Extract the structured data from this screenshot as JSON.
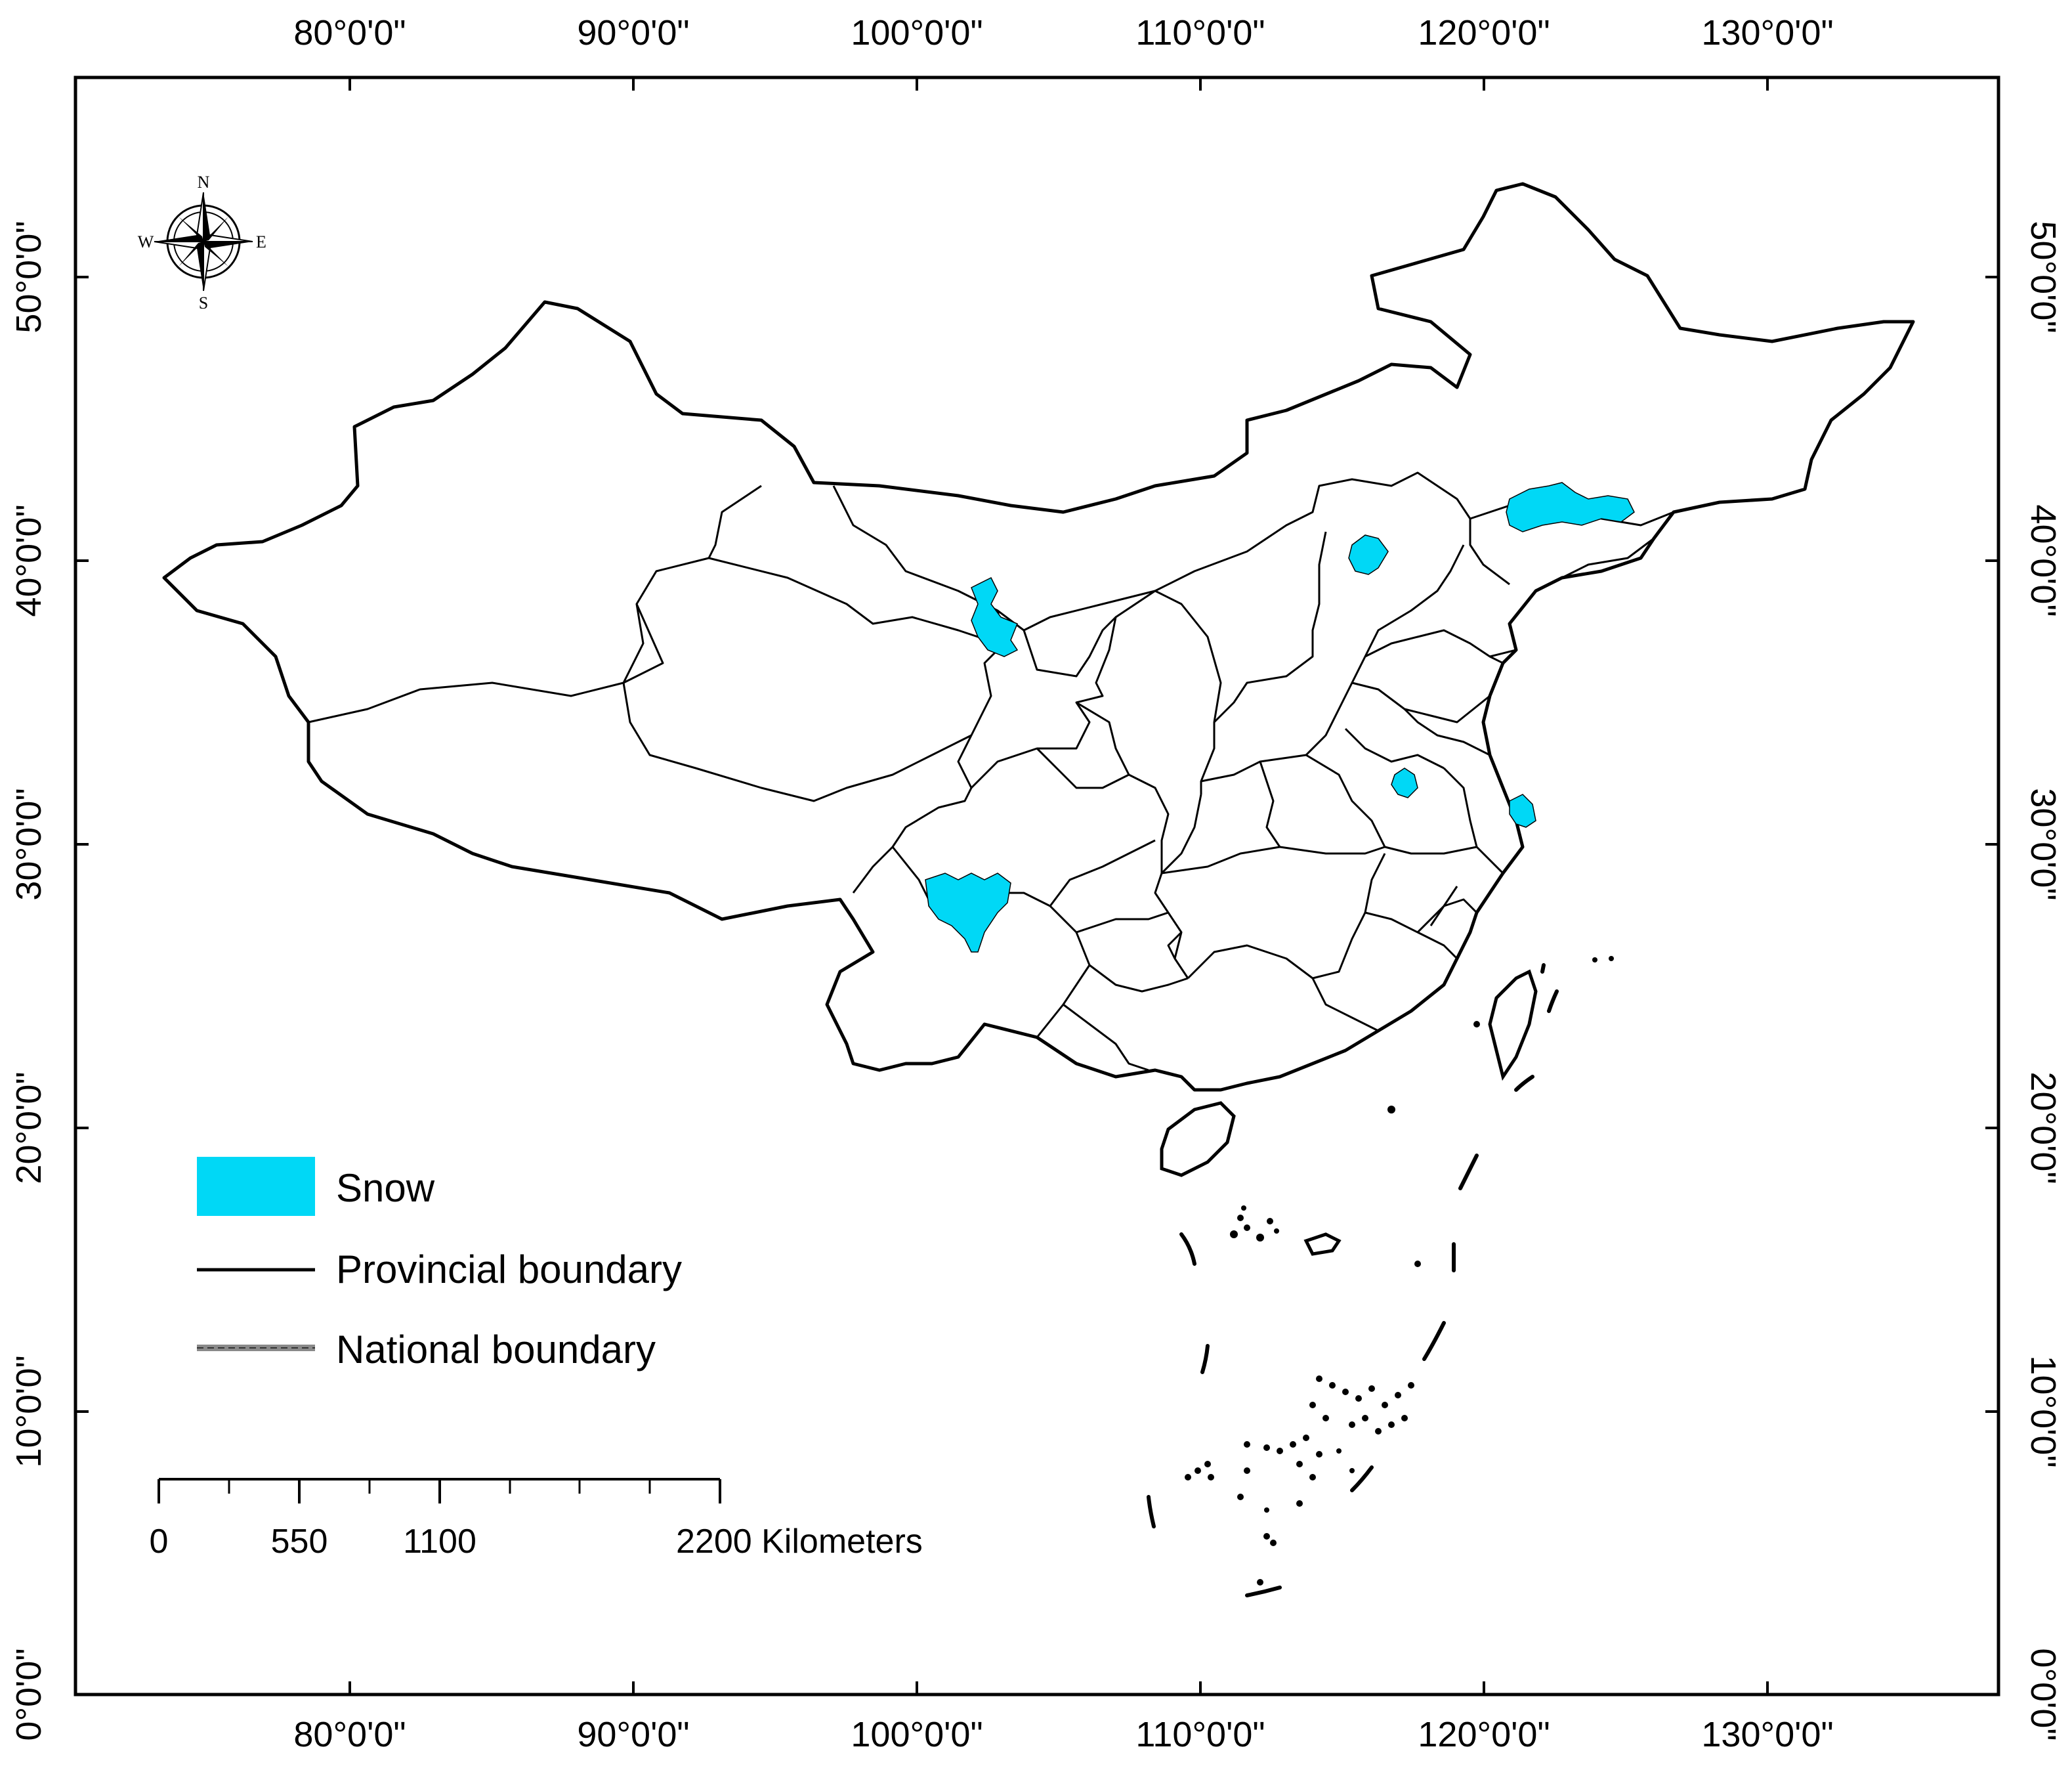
{
  "colors": {
    "snow": "#00d8f6",
    "provincial_boundary": "#000000",
    "national_boundary": "#8a8a8a",
    "frame": "#000000"
  },
  "axes": {
    "top": [
      "80°0'0\"",
      "90°0'0\"",
      "100°0'0\"",
      "110°0'0\"",
      "120°0'0\"",
      "130°0'0\""
    ],
    "bottom": [
      "80°0'0\"",
      "90°0'0\"",
      "100°0'0\"",
      "110°0'0\"",
      "120°0'0\"",
      "130°0'0\""
    ],
    "left": [
      "50°0'0\"",
      "40°0'0\"",
      "30°0'0\"",
      "20°0'0\"",
      "10°0'0\"",
      "0°0'0\""
    ],
    "right": [
      "50°0'0\"",
      "40°0'0\"",
      "30°0'0\"",
      "20°0'0\"",
      "10°0'0\"",
      "0°0'0\""
    ]
  },
  "compass": {
    "north": "N",
    "south": "S",
    "east": "E",
    "west": "W"
  },
  "legend": {
    "snow": "Snow",
    "provincial": "Provincial boundary",
    "national": "National boundary"
  },
  "scale_bar": {
    "labels": [
      "0",
      "550",
      "1100",
      "2200 Kilometers"
    ]
  }
}
